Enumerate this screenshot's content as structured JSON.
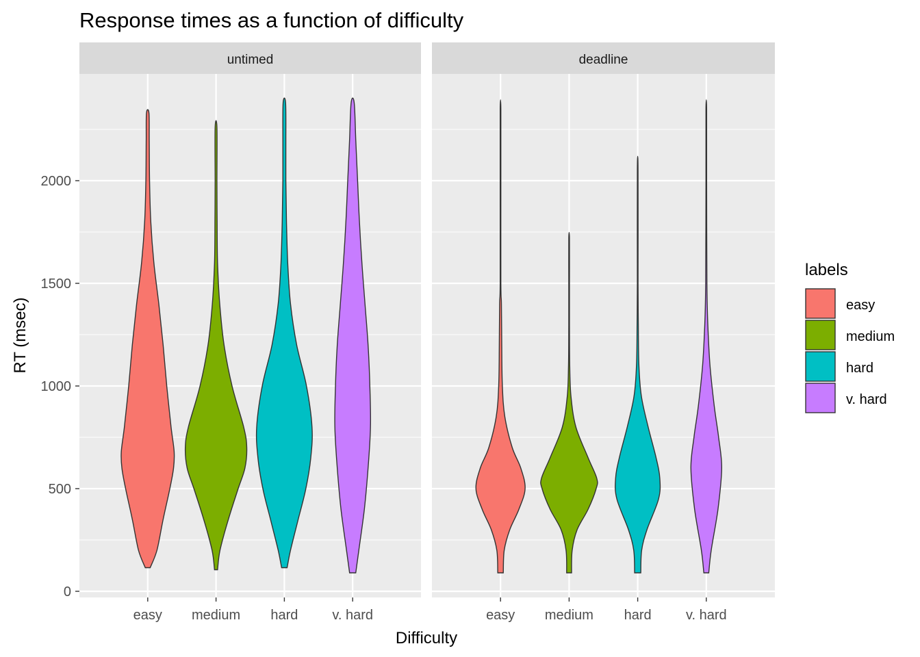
{
  "chart_data": {
    "type": "violin",
    "title": "Response times as a function of difficulty",
    "xlabel": "Difficulty",
    "ylabel": "RT (msec)",
    "ylim": [
      -30,
      2520
    ],
    "y_ticks": [
      0,
      500,
      1000,
      1500,
      2000
    ],
    "categories": [
      "easy",
      "medium",
      "hard",
      "v. hard"
    ],
    "legend": {
      "title": "labels",
      "position": "right",
      "entries": [
        {
          "label": "easy",
          "color": "#F8766D"
        },
        {
          "label": "medium",
          "color": "#7CAE00"
        },
        {
          "label": "hard",
          "color": "#00BFC4"
        },
        {
          "label": "v. hard",
          "color": "#C77CFF"
        }
      ]
    },
    "panels": [
      {
        "name": "untimed",
        "violins": [
          {
            "category": "easy",
            "min": 115,
            "max": 2330,
            "profile": [
              [
                115,
                0.08
              ],
              [
                200,
                0.3
              ],
              [
                350,
                0.5
              ],
              [
                500,
                0.72
              ],
              [
                600,
                0.84
              ],
              [
                680,
                0.86
              ],
              [
                800,
                0.76
              ],
              [
                1000,
                0.62
              ],
              [
                1200,
                0.5
              ],
              [
                1400,
                0.36
              ],
              [
                1600,
                0.2
              ],
              [
                1800,
                0.1
              ],
              [
                2000,
                0.06
              ],
              [
                2200,
                0.05
              ],
              [
                2330,
                0.04
              ]
            ]
          },
          {
            "category": "medium",
            "min": 105,
            "max": 2260,
            "profile": [
              [
                105,
                0.05
              ],
              [
                200,
                0.13
              ],
              [
                350,
                0.4
              ],
              [
                500,
                0.72
              ],
              [
                600,
                0.94
              ],
              [
                700,
                1.0
              ],
              [
                800,
                0.9
              ],
              [
                1000,
                0.52
              ],
              [
                1200,
                0.26
              ],
              [
                1400,
                0.12
              ],
              [
                1600,
                0.05
              ],
              [
                1800,
                0.035
              ],
              [
                2000,
                0.03
              ],
              [
                2260,
                0.03
              ]
            ]
          },
          {
            "category": "hard",
            "min": 115,
            "max": 2380,
            "profile": [
              [
                115,
                0.09
              ],
              [
                200,
                0.2
              ],
              [
                350,
                0.45
              ],
              [
                500,
                0.7
              ],
              [
                650,
                0.86
              ],
              [
                800,
                0.9
              ],
              [
                1000,
                0.72
              ],
              [
                1200,
                0.4
              ],
              [
                1400,
                0.2
              ],
              [
                1600,
                0.11
              ],
              [
                1800,
                0.07
              ],
              [
                2000,
                0.05
              ],
              [
                2200,
                0.05
              ],
              [
                2380,
                0.04
              ]
            ]
          },
          {
            "category": "v. hard",
            "min": 90,
            "max": 2380,
            "profile": [
              [
                90,
                0.1
              ],
              [
                200,
                0.2
              ],
              [
                400,
                0.38
              ],
              [
                600,
                0.5
              ],
              [
                800,
                0.58
              ],
              [
                1000,
                0.56
              ],
              [
                1200,
                0.5
              ],
              [
                1400,
                0.4
              ],
              [
                1600,
                0.3
              ],
              [
                1800,
                0.22
              ],
              [
                2000,
                0.16
              ],
              [
                2200,
                0.1
              ],
              [
                2380,
                0.05
              ]
            ]
          }
        ]
      },
      {
        "name": "deadline",
        "violins": [
          {
            "category": "easy",
            "min": 90,
            "max": 2350,
            "profile": [
              [
                90,
                0.09
              ],
              [
                200,
                0.12
              ],
              [
                300,
                0.3
              ],
              [
                400,
                0.6
              ],
              [
                500,
                0.8
              ],
              [
                600,
                0.66
              ],
              [
                700,
                0.38
              ],
              [
                850,
                0.14
              ],
              [
                1000,
                0.06
              ],
              [
                1200,
                0.04
              ],
              [
                1400,
                0.03
              ],
              [
                1500,
                0.012
              ],
              [
                2000,
                0.008
              ],
              [
                2350,
                0.006
              ]
            ]
          },
          {
            "category": "medium",
            "min": 90,
            "max": 1720,
            "profile": [
              [
                90,
                0.08
              ],
              [
                200,
                0.1
              ],
              [
                300,
                0.26
              ],
              [
                400,
                0.62
              ],
              [
                500,
                0.88
              ],
              [
                550,
                0.9
              ],
              [
                650,
                0.62
              ],
              [
                800,
                0.22
              ],
              [
                950,
                0.06
              ],
              [
                1100,
                0.02
              ],
              [
                1300,
                0.012
              ],
              [
                1500,
                0.008
              ],
              [
                1720,
                0.006
              ]
            ]
          },
          {
            "category": "hard",
            "min": 90,
            "max": 2050,
            "profile": [
              [
                90,
                0.1
              ],
              [
                200,
                0.13
              ],
              [
                300,
                0.3
              ],
              [
                450,
                0.68
              ],
              [
                550,
                0.72
              ],
              [
                650,
                0.6
              ],
              [
                800,
                0.34
              ],
              [
                950,
                0.12
              ],
              [
                1100,
                0.04
              ],
              [
                1300,
                0.02
              ],
              [
                1500,
                0.01
              ],
              [
                2050,
                0.006
              ]
            ]
          },
          {
            "category": "v. hard",
            "min": 90,
            "max": 2350,
            "profile": [
              [
                90,
                0.08
              ],
              [
                200,
                0.16
              ],
              [
                400,
                0.38
              ],
              [
                600,
                0.5
              ],
              [
                750,
                0.4
              ],
              [
                900,
                0.26
              ],
              [
                1100,
                0.12
              ],
              [
                1300,
                0.05
              ],
              [
                1500,
                0.02
              ],
              [
                2000,
                0.008
              ],
              [
                2350,
                0.006
              ]
            ]
          }
        ]
      }
    ]
  }
}
